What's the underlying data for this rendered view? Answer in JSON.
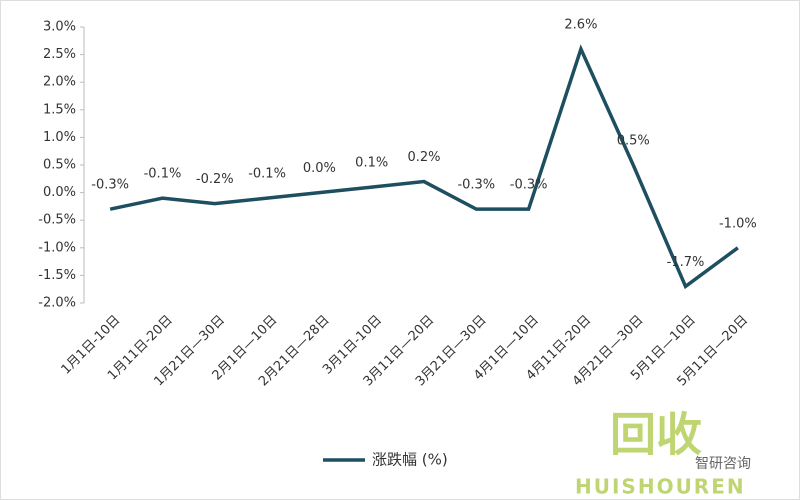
{
  "chart_data": {
    "type": "line",
    "categories": [
      "1月1日-10日",
      "1月11日-20日",
      "1月21日—30日",
      "2月1日—10日",
      "2月21日—28日",
      "3月1日-10日",
      "3月11日—20日",
      "3月21日—30日",
      "4月1日—10日",
      "4月11日-20日",
      "4月21日—30日",
      "5月1日—10日",
      "5月11日—20日"
    ],
    "series": [
      {
        "name": "涨跌幅 (%)",
        "color": "#1d4f60",
        "values": [
          -0.3,
          -0.1,
          -0.2,
          -0.1,
          0.0,
          0.1,
          0.2,
          -0.3,
          -0.3,
          2.6,
          0.5,
          -1.7,
          -1.0
        ],
        "value_labels": [
          "-0.3%",
          "-0.1%",
          "-0.2%",
          "-0.1%",
          "0.0%",
          "0.1%",
          "0.2%",
          "-0.3%",
          "-0.3%",
          "2.6%",
          "0.5%",
          "-1.7%",
          "-1.0%"
        ]
      }
    ],
    "ylim": [
      -2,
      3
    ],
    "yticks": [
      {
        "value": -2,
        "label": "-2.0%"
      },
      {
        "value": -1.5,
        "label": "-1.5%"
      },
      {
        "value": -1,
        "label": "-1.0%"
      },
      {
        "value": -0.5,
        "label": "-0.5%"
      },
      {
        "value": 0,
        "label": "0.0%"
      },
      {
        "value": 0.5,
        "label": "0.5%"
      },
      {
        "value": 1,
        "label": "1.0%"
      },
      {
        "value": 1.5,
        "label": "1.5%"
      },
      {
        "value": 2,
        "label": "2.0%"
      },
      {
        "value": 2.5,
        "label": "2.5%"
      },
      {
        "value": 3,
        "label": "3.0%"
      }
    ],
    "grid": false,
    "legend": "bottom",
    "watermark": [
      "回收",
      "HUISHOUREN",
      "智研咨询"
    ]
  }
}
